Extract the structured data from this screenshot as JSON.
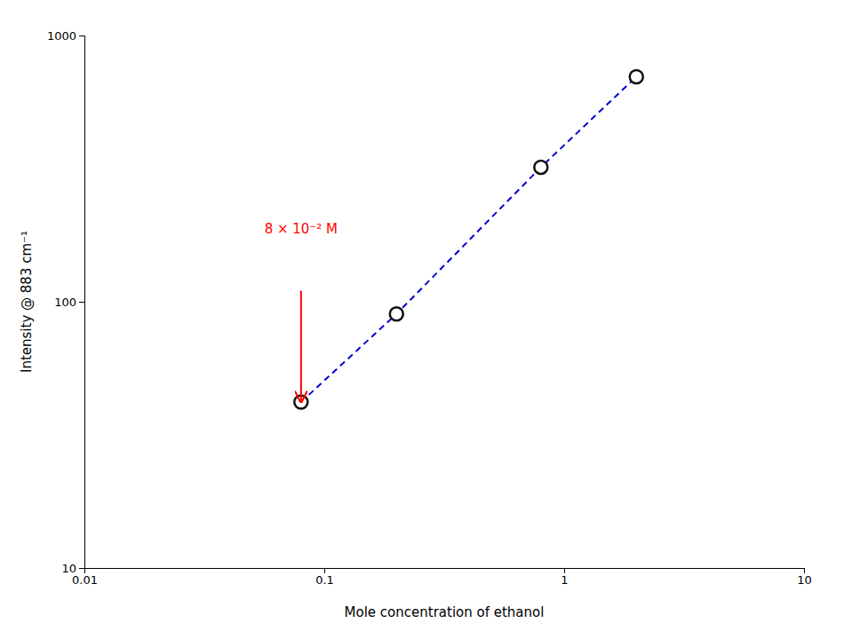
{
  "chart_data": {
    "type": "line",
    "x": [
      0.08,
      0.2,
      0.8,
      2.0
    ],
    "values": [
      42,
      90,
      320,
      700
    ],
    "color": "#0000CC",
    "marker": "circle",
    "line_style": "dashed",
    "log": true,
    "grid": false,
    "xlim": [
      0.01,
      10
    ],
    "ylim": [
      10,
      1000
    ],
    "xticks": [
      0.01,
      0.1,
      1,
      10
    ],
    "yticks": [
      10,
      100,
      1000
    ],
    "xlabel": "Mole concentration of ethanol",
    "ylabel": "Intensity @ 883 cm⁻¹",
    "annotations": [
      {
        "text": "8 × 10⁻² M",
        "x": 0.08,
        "y": 180,
        "color": "red",
        "arrow_x": 0.08,
        "arrow_y_start": 110,
        "arrow_y_tip": 42
      }
    ]
  }
}
